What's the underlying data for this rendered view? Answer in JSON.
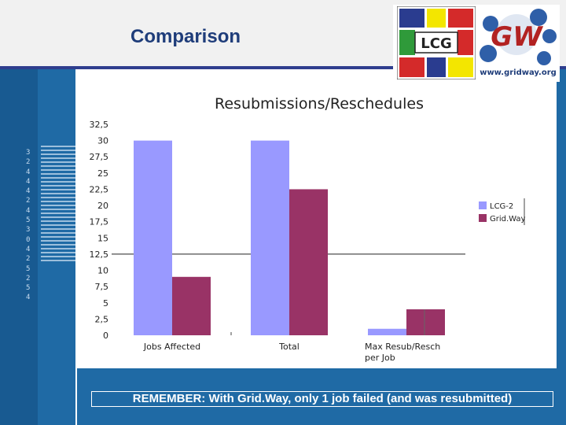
{
  "slide": {
    "title": "Comparison",
    "remember_text": "REMEMBER: With Grid.Way, only 1 job failed (and was resubmitted)",
    "side_digits": "3244424530425254",
    "logos": {
      "lcg_text": "LCG",
      "gw_text": "GW",
      "gw_url": "www.gridway.org"
    },
    "colors": {
      "header_bg": "#f1f1f1",
      "title_color": "#1f3d7a",
      "side_band": "#1f6aa5",
      "header_line": "#2f3e8e"
    }
  },
  "chart_data": {
    "type": "bar",
    "title": "Resubmissions/Reschedules",
    "categories": [
      "Jobs Affected",
      "Total",
      "Max Resub/Resch per Job"
    ],
    "category_lines": [
      [
        "Jobs Affected"
      ],
      [
        "Total"
      ],
      [
        "Max Resub/Resch",
        "per Job"
      ]
    ],
    "series": [
      {
        "name": "LCG-2",
        "values": [
          30,
          30,
          1
        ],
        "color": "#9999ff"
      },
      {
        "name": "Grid.Way",
        "values": [
          9,
          22.5,
          4
        ],
        "color": "#993366"
      }
    ],
    "ylim": [
      0,
      32.5
    ],
    "yticks": [
      "0",
      "2,5",
      "5",
      "7,5",
      "10",
      "12,5",
      "15",
      "17,5",
      "20",
      "22,5",
      "25",
      "27,5",
      "30",
      "32,5"
    ],
    "reference_line": 12.5,
    "legend": "right",
    "grid": false
  }
}
